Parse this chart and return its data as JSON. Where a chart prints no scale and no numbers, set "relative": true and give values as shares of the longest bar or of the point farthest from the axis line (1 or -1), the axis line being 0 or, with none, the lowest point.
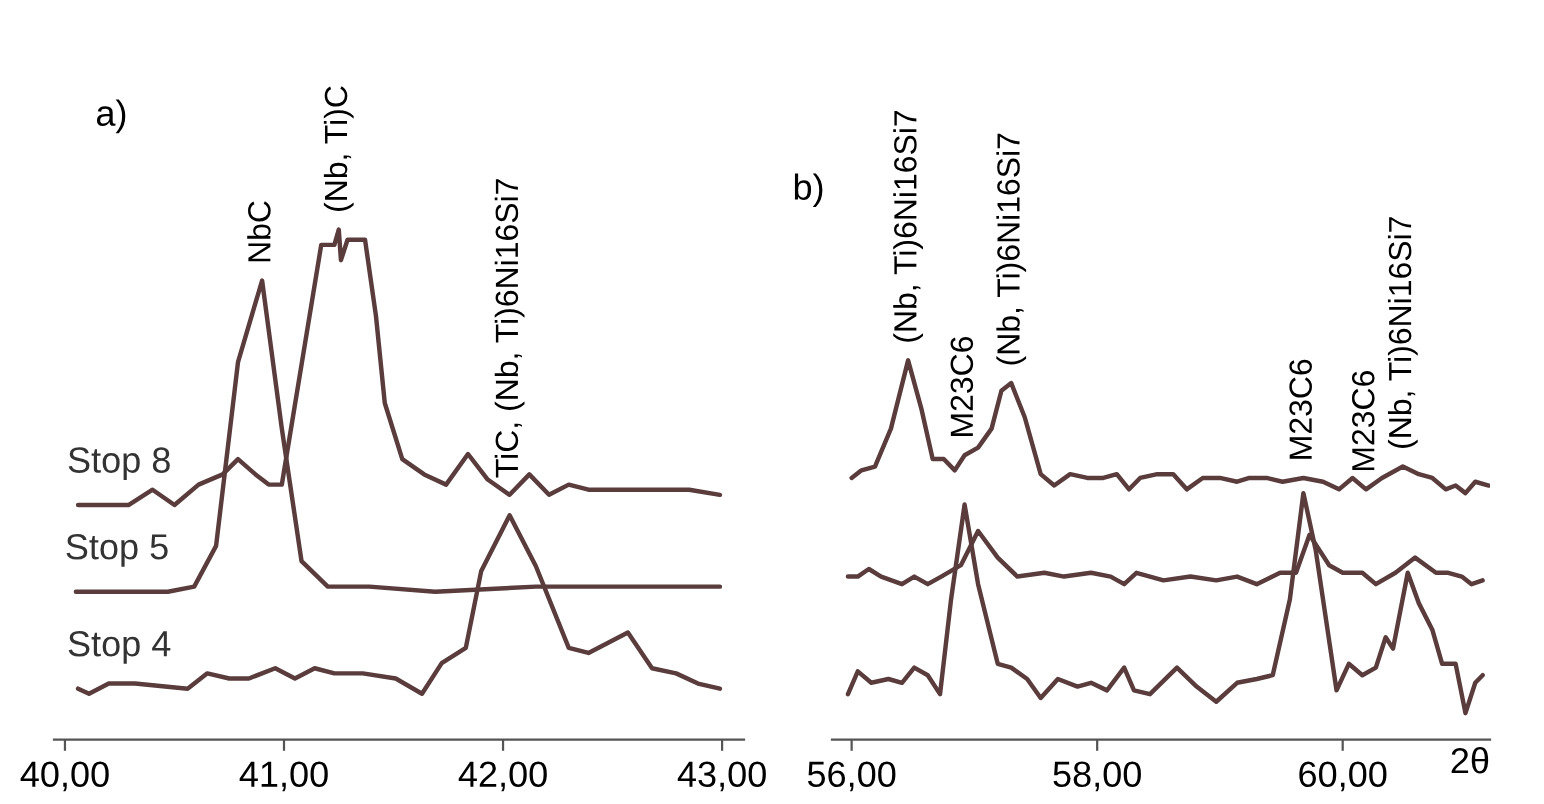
{
  "chart_data": [
    {
      "type": "line",
      "relative": true,
      "title": "a)",
      "xlim": [
        39.95,
        43.1
      ],
      "xticks": [
        {
          "value": 40,
          "label": "40,00"
        },
        {
          "value": 41,
          "label": "41,00"
        },
        {
          "value": 42,
          "label": "42,00"
        },
        {
          "value": 43,
          "label": "43,00"
        }
      ],
      "series": [
        {
          "name": "Stop 8",
          "color": "#5a3c3c",
          "x": [
            40.06,
            40.29,
            40.4,
            40.5,
            40.61,
            40.72,
            40.79,
            40.87,
            40.93,
            40.99,
            41.17,
            41.23,
            41.25,
            41.26,
            41.29,
            41.37,
            41.42,
            41.46,
            41.54,
            41.64,
            41.74,
            41.84,
            41.93,
            42.03,
            42.12,
            42.21,
            42.3,
            42.39,
            42.51,
            42.63,
            42.76,
            42.85,
            42.99
          ],
          "values": [
            0.46,
            0.46,
            0.49,
            0.46,
            0.5,
            0.52,
            0.55,
            0.52,
            0.5,
            0.5,
            0.97,
            0.97,
            1.0,
            0.94,
            0.98,
            0.98,
            0.83,
            0.66,
            0.55,
            0.52,
            0.5,
            0.56,
            0.51,
            0.48,
            0.52,
            0.48,
            0.5,
            0.49,
            0.49,
            0.49,
            0.49,
            0.49,
            0.48
          ]
        },
        {
          "name": "Stop 5",
          "color": "#5a3c3c",
          "x": [
            40.05,
            40.26,
            40.47,
            40.59,
            40.69,
            40.79,
            40.9,
            40.99,
            41.08,
            41.2,
            41.39,
            41.69,
            42.15,
            42.45,
            42.76,
            42.99
          ],
          "values": [
            0.29,
            0.29,
            0.29,
            0.3,
            0.38,
            0.74,
            0.9,
            0.61,
            0.35,
            0.3,
            0.3,
            0.29,
            0.3,
            0.3,
            0.3,
            0.3
          ]
        },
        {
          "name": "Stop 4",
          "color": "#5a3c3c",
          "x": [
            40.06,
            40.11,
            40.2,
            40.32,
            40.56,
            40.65,
            40.75,
            40.84,
            40.96,
            41.05,
            41.14,
            41.23,
            41.36,
            41.51,
            41.63,
            41.72,
            41.83,
            41.9,
            42.03,
            42.15,
            42.3,
            42.39,
            42.57,
            42.68,
            42.79,
            42.89,
            42.99
          ],
          "values": [
            0.1,
            0.09,
            0.11,
            0.11,
            0.1,
            0.13,
            0.12,
            0.12,
            0.14,
            0.12,
            0.14,
            0.13,
            0.13,
            0.12,
            0.09,
            0.15,
            0.18,
            0.33,
            0.44,
            0.34,
            0.18,
            0.17,
            0.21,
            0.14,
            0.13,
            0.11,
            0.1
          ]
        }
      ],
      "annotations": [
        {
          "text": "NbC",
          "x": 40.9,
          "y": 0.9
        },
        {
          "text": "(Nb, Ti)C",
          "x": 41.25,
          "y": 1.0
        },
        {
          "text": "TiC, (Nb, Ti)6Ni16Si7",
          "x": 42.03,
          "y": 0.44
        }
      ]
    },
    {
      "type": "line",
      "relative": true,
      "title": "b)",
      "xlabel": "2θ",
      "xlim": [
        55.84,
        61.2
      ],
      "xticks": [
        {
          "value": 56,
          "label": "56,00"
        },
        {
          "value": 58,
          "label": "58,00"
        },
        {
          "value": 60,
          "label": "60,00"
        }
      ],
      "series": [
        {
          "color": "#5a3c3c",
          "x": [
            56.0,
            56.08,
            56.19,
            56.32,
            56.46,
            56.57,
            56.66,
            56.75,
            56.84,
            56.92,
            57.03,
            57.14,
            57.22,
            57.3,
            57.41,
            57.54,
            57.65,
            57.78,
            57.92,
            58.05,
            58.16,
            58.26,
            58.35,
            58.49,
            58.62,
            58.73,
            58.86,
            59.0,
            59.14,
            59.24,
            59.38,
            59.51,
            59.68,
            59.84,
            59.97,
            60.08,
            60.19,
            60.32,
            60.49,
            60.62,
            60.73,
            60.84,
            60.92,
            61.0,
            61.08,
            61.19
          ],
          "values": [
            0.69,
            0.71,
            0.72,
            0.82,
            1.0,
            0.87,
            0.74,
            0.74,
            0.71,
            0.75,
            0.77,
            0.82,
            0.92,
            0.94,
            0.85,
            0.7,
            0.67,
            0.7,
            0.69,
            0.69,
            0.7,
            0.66,
            0.69,
            0.7,
            0.7,
            0.66,
            0.69,
            0.69,
            0.68,
            0.69,
            0.69,
            0.68,
            0.69,
            0.68,
            0.66,
            0.69,
            0.66,
            0.69,
            0.72,
            0.7,
            0.69,
            0.66,
            0.67,
            0.65,
            0.68,
            0.67
          ]
        },
        {
          "color": "#5a3c3c",
          "x": [
            55.97,
            56.05,
            56.14,
            56.24,
            56.41,
            56.51,
            56.62,
            56.73,
            56.89,
            57.03,
            57.19,
            57.35,
            57.57,
            57.73,
            57.95,
            58.11,
            58.22,
            58.32,
            58.54,
            58.76,
            58.97,
            59.14,
            59.3,
            59.49,
            59.62,
            59.73,
            59.89,
            60.0,
            60.16,
            60.27,
            60.43,
            60.59,
            60.76,
            60.86,
            60.97,
            61.05,
            61.14
          ],
          "values": [
            0.43,
            0.43,
            0.45,
            0.43,
            0.41,
            0.43,
            0.41,
            0.43,
            0.46,
            0.55,
            0.48,
            0.43,
            0.44,
            0.43,
            0.44,
            0.43,
            0.41,
            0.44,
            0.42,
            0.43,
            0.42,
            0.43,
            0.41,
            0.44,
            0.44,
            0.54,
            0.46,
            0.44,
            0.44,
            0.41,
            0.44,
            0.48,
            0.44,
            0.44,
            0.43,
            0.41,
            0.42
          ]
        },
        {
          "color": "#5a3c3c",
          "x": [
            55.97,
            56.05,
            56.16,
            56.3,
            56.41,
            56.51,
            56.62,
            56.72,
            56.81,
            56.92,
            57.03,
            57.19,
            57.3,
            57.43,
            57.54,
            57.68,
            57.84,
            57.95,
            58.08,
            58.22,
            58.3,
            58.43,
            58.65,
            58.81,
            58.97,
            59.14,
            59.3,
            59.43,
            59.57,
            59.68,
            59.78,
            59.95,
            60.05,
            60.16,
            60.27,
            60.35,
            60.41,
            60.53,
            60.62,
            60.73,
            60.81,
            60.92,
            61.0,
            61.08,
            61.14
          ],
          "values": [
            0.12,
            0.18,
            0.15,
            0.16,
            0.15,
            0.19,
            0.17,
            0.12,
            0.37,
            0.62,
            0.41,
            0.2,
            0.19,
            0.16,
            0.11,
            0.16,
            0.14,
            0.15,
            0.13,
            0.19,
            0.13,
            0.12,
            0.19,
            0.14,
            0.1,
            0.15,
            0.16,
            0.17,
            0.37,
            0.65,
            0.5,
            0.13,
            0.2,
            0.17,
            0.19,
            0.27,
            0.24,
            0.44,
            0.36,
            0.29,
            0.2,
            0.2,
            0.07,
            0.15,
            0.17
          ]
        }
      ],
      "annotations": [
        {
          "text": "(Nb, Ti)6Ni16Si7",
          "x": 56.46,
          "y": 1.0
        },
        {
          "text": "M23C6",
          "x": 56.92,
          "y": 0.62
        },
        {
          "text": "(Nb, Ti)6Ni16Si7",
          "x": 57.3,
          "y": 0.94
        },
        {
          "text": "M23C6",
          "x": 59.68,
          "y": 0.65
        },
        {
          "text": "M23C6",
          "x": 60.19,
          "y": 0.66
        },
        {
          "text": "(Nb, Ti)6Ni16Si7",
          "x": 60.49,
          "y": 0.72
        }
      ]
    }
  ]
}
